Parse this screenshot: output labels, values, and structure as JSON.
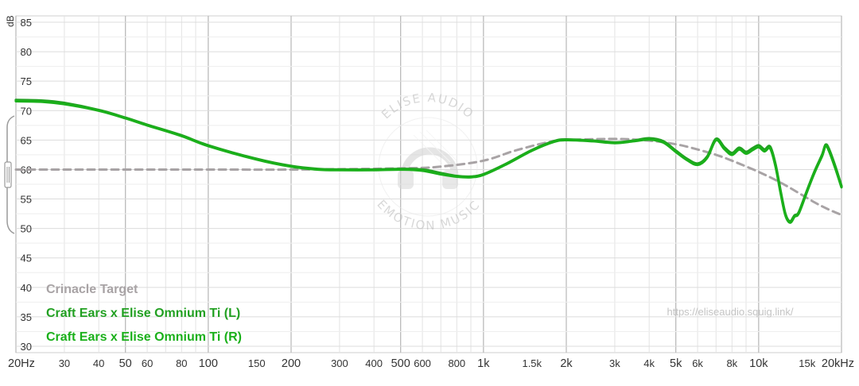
{
  "chart_data": {
    "type": "line",
    "ylabel": "dB",
    "xscale": "log",
    "xlim": [
      20,
      20000
    ],
    "ylim": [
      30,
      85
    ],
    "grid": true,
    "legend_position": "bottom-left",
    "y_ticks": [
      "30",
      "35",
      "40",
      "45",
      "50",
      "55",
      "60",
      "65",
      "70",
      "75",
      "80",
      "85"
    ],
    "x_ticks": [
      {
        "f": 20,
        "label": "20Hz",
        "major": true
      },
      {
        "f": 30,
        "label": "30"
      },
      {
        "f": 40,
        "label": "40"
      },
      {
        "f": 50,
        "label": "50",
        "major": true
      },
      {
        "f": 60,
        "label": "60"
      },
      {
        "f": 80,
        "label": "80"
      },
      {
        "f": 100,
        "label": "100",
        "major": true
      },
      {
        "f": 150,
        "label": "150"
      },
      {
        "f": 200,
        "label": "200",
        "major": true
      },
      {
        "f": 300,
        "label": "300"
      },
      {
        "f": 400,
        "label": "400"
      },
      {
        "f": 500,
        "label": "500",
        "major": true
      },
      {
        "f": 600,
        "label": "600"
      },
      {
        "f": 800,
        "label": "800"
      },
      {
        "f": 1000,
        "label": "1k",
        "major": true
      },
      {
        "f": 1500,
        "label": "1.5k"
      },
      {
        "f": 2000,
        "label": "2k",
        "major": true
      },
      {
        "f": 3000,
        "label": "3k"
      },
      {
        "f": 4000,
        "label": "4k"
      },
      {
        "f": 5000,
        "label": "5k",
        "major": true
      },
      {
        "f": 6000,
        "label": "6k"
      },
      {
        "f": 8000,
        "label": "8k"
      },
      {
        "f": 10000,
        "label": "10k",
        "major": true
      },
      {
        "f": 15000,
        "label": "15k"
      },
      {
        "f": 20000,
        "label": "20kHz",
        "major": true
      }
    ],
    "series": [
      {
        "name": "Crinacle Target",
        "color": "#a8a3a5",
        "dash": true,
        "x": [
          20,
          100,
          200,
          500,
          700,
          1000,
          1300,
          1700,
          2000,
          3000,
          4000,
          5000,
          6000,
          7000,
          8000,
          10000,
          12000,
          14000,
          16000,
          18000,
          20000
        ],
        "y": [
          60,
          60,
          60,
          60.2,
          60.5,
          61.5,
          63.2,
          64.6,
          65.0,
          65.2,
          64.9,
          64.3,
          63.4,
          62.5,
          61.5,
          59.6,
          57.8,
          56.0,
          54.4,
          53.2,
          52.3
        ]
      },
      {
        "name": "Craft Ears x Elise Omnium Ti (L)",
        "color": "#22a022",
        "x": [
          20,
          25,
          30,
          40,
          50,
          60,
          80,
          100,
          150,
          200,
          250,
          300,
          400,
          500,
          600,
          700,
          800,
          900,
          1000,
          1200,
          1500,
          1800,
          2000,
          2500,
          3000,
          3500,
          4000,
          4500,
          5000,
          5500,
          6000,
          6500,
          7000,
          7500,
          8000,
          8500,
          9000,
          9500,
          10000,
          10500,
          11000,
          11500,
          12000,
          12500,
          13000,
          13500,
          14000,
          15000,
          16000,
          17000,
          17500,
          18000,
          19000,
          20000
        ],
        "y": [
          71.8,
          71.7,
          71.3,
          70.1,
          68.8,
          67.6,
          65.8,
          64.1,
          61.8,
          60.6,
          60.1,
          60.0,
          60.0,
          60.1,
          60.0,
          59.4,
          58.9,
          58.8,
          59.2,
          60.9,
          63.3,
          64.8,
          65.1,
          64.9,
          64.6,
          64.9,
          65.3,
          64.8,
          63.2,
          61.8,
          61.0,
          62.2,
          65.2,
          63.8,
          62.8,
          63.7,
          63.0,
          63.6,
          64.1,
          63.4,
          63.9,
          61.0,
          56.5,
          52.5,
          51.2,
          52.2,
          52.8,
          56.5,
          59.8,
          62.5,
          64.2,
          63.5,
          60.5,
          57.2
        ]
      },
      {
        "name": "Craft Ears x Elise Omnium Ti (R)",
        "color": "#1ab01a",
        "x": [
          20,
          25,
          30,
          40,
          50,
          60,
          80,
          100,
          150,
          200,
          250,
          300,
          400,
          500,
          600,
          700,
          800,
          900,
          1000,
          1200,
          1500,
          1800,
          2000,
          2500,
          3000,
          3500,
          4000,
          4500,
          5000,
          5500,
          6000,
          6500,
          7000,
          7500,
          8000,
          8500,
          9000,
          9500,
          10000,
          10500,
          11000,
          11500,
          12000,
          12500,
          13000,
          13500,
          14000,
          15000,
          16000,
          17000,
          17500,
          18000,
          19000,
          20000
        ],
        "y": [
          71.6,
          71.5,
          71.1,
          70.0,
          68.7,
          67.5,
          65.7,
          64.0,
          61.7,
          60.5,
          60.0,
          59.9,
          59.9,
          60.0,
          59.8,
          59.2,
          58.8,
          58.7,
          59.1,
          60.8,
          63.2,
          64.7,
          65.0,
          64.8,
          64.5,
          64.8,
          65.1,
          64.6,
          63.0,
          61.6,
          60.8,
          62.0,
          65.0,
          63.5,
          62.5,
          63.4,
          62.7,
          63.3,
          63.8,
          63.1,
          63.6,
          60.7,
          56.2,
          52.3,
          51.0,
          52.0,
          52.6,
          56.3,
          59.6,
          62.3,
          64.0,
          63.2,
          60.2,
          57.0
        ]
      }
    ]
  },
  "watermark": {
    "top_text": "ELISE AUDIO",
    "bottom_text": "EMOTION MUSIC",
    "url": "https://eliseaudio.squig.link/"
  }
}
